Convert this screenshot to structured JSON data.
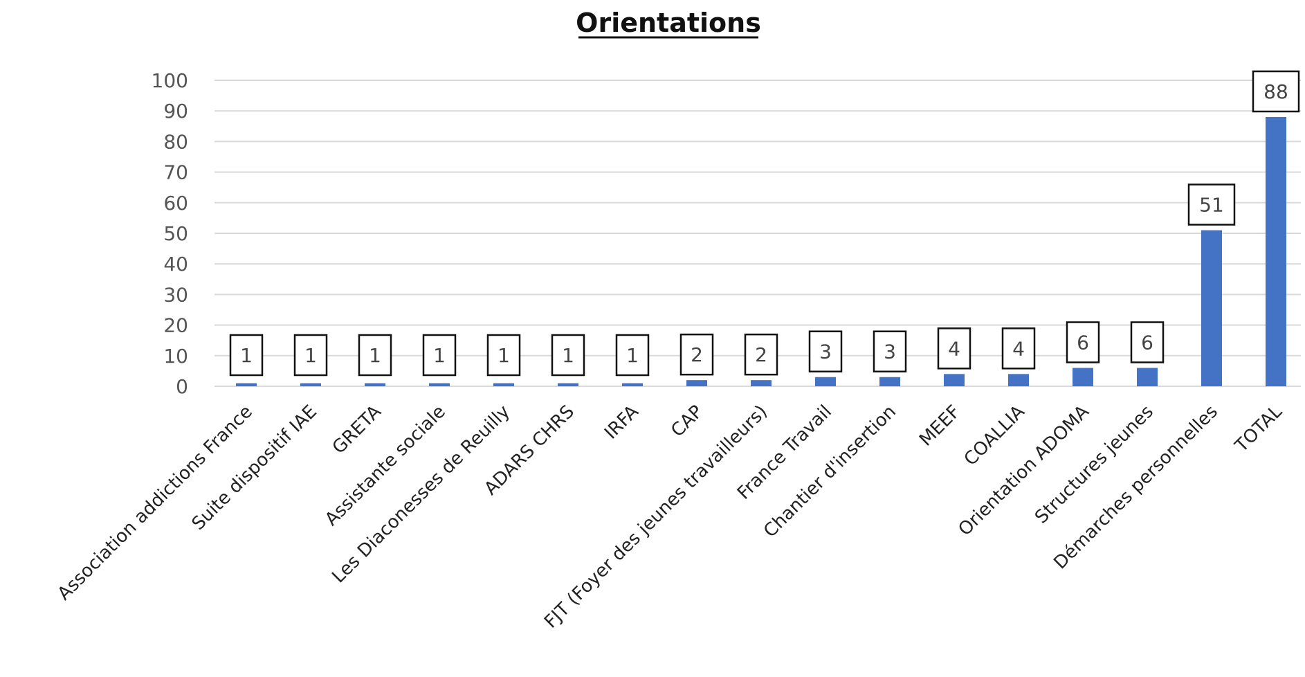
{
  "chart_data": {
    "type": "bar",
    "title": "Orientations",
    "xlabel": "",
    "ylabel": "",
    "ylim": [
      0,
      100
    ],
    "yticks": [
      0,
      10,
      20,
      30,
      40,
      50,
      60,
      70,
      80,
      90,
      100
    ],
    "grid": true,
    "legend": "none",
    "bar_color": "#4472c4",
    "categories": [
      "Association addictions France",
      "Suite dispositif IAE",
      "GRETA",
      "Assistante sociale",
      "Les Diaconesses de Reuilly",
      "ADARS CHRS",
      "IRFA",
      "CAP",
      "FJT (Foyer des jeunes travailleurs)",
      "France Travail",
      "Chantier d'insertion",
      "MEEF",
      "COALLIA",
      "Orientation ADOMA",
      "Structures jeunes",
      "Démarches personnelles",
      "TOTAL"
    ],
    "values": [
      1,
      1,
      1,
      1,
      1,
      1,
      1,
      2,
      2,
      3,
      3,
      4,
      4,
      6,
      6,
      51,
      88
    ]
  }
}
